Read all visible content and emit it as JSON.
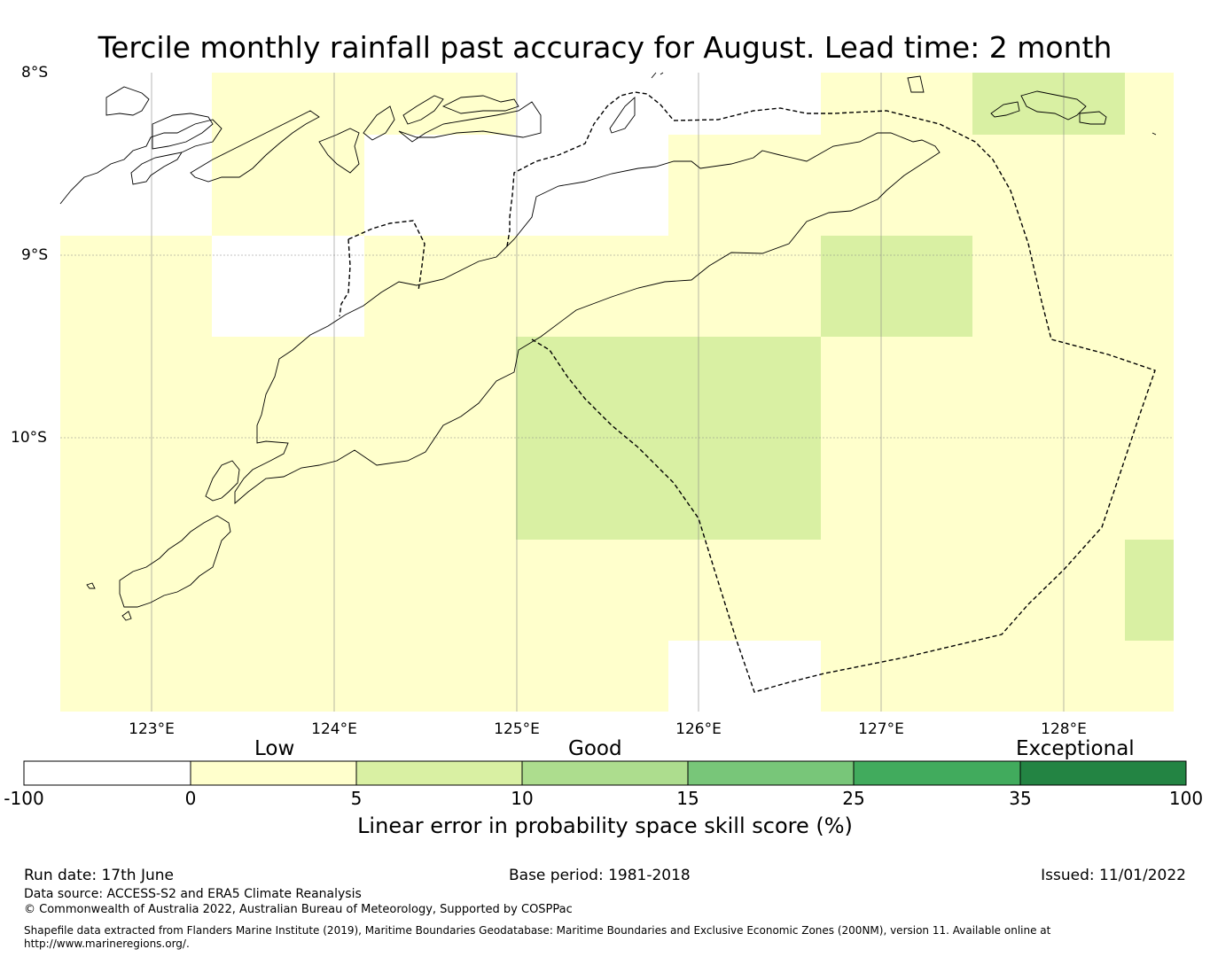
{
  "title": "Tercile monthly rainfall past accuracy for August. Lead time: 2 month",
  "axes": {
    "lat_labels": [
      "8°S",
      "9°S",
      "10°S"
    ],
    "lon_labels": [
      "123°E",
      "124°E",
      "125°E",
      "126°E",
      "127°E",
      "128°E"
    ]
  },
  "map_data": {
    "type": "gridded skill score map",
    "lon_range": [
      122.5,
      128.6
    ],
    "lat_range": [
      -11.5,
      -8.0
    ],
    "cell_size_deg": 0.83,
    "grid_categories": {
      "white": "-100 to 0",
      "light_yellow": "0 to 5",
      "pale_green": "5 to 10",
      "light_green": "10 to 15"
    },
    "features": [
      "coastlines",
      "dashed maritime boundary",
      "lat/lon gridlines"
    ]
  },
  "colorbar": {
    "category_labels": [
      "Low",
      "Good",
      "Exceptional"
    ],
    "ticks": [
      "-100",
      "0",
      "5",
      "10",
      "15",
      "25",
      "35",
      "100"
    ],
    "colors": [
      "#ffffff",
      "#ffffcc",
      "#d9f0a3",
      "#addd8e",
      "#78c679",
      "#41ab5d",
      "#238443"
    ],
    "label": "Linear error in probability space skill score (%)"
  },
  "footer": {
    "run_date": "Run date: 17th June",
    "base_period": "Base period: 1981-2018",
    "issued": "Issued: 11/01/2022",
    "data_source": "Data source: ACCESS-S2 and ERA5 Climate Reanalysis",
    "copyright": "© Commonwealth of Australia 2022, Australian Bureau of Meteorology, Supported by COSPPac",
    "shapefile_line1": "Shapefile data extracted from Flanders Marine Institute (2019), Maritime Boundaries Geodatabase: Maritime Boundaries and Exclusive Economic Zones (200NM), version 11. Available online at",
    "shapefile_line2": "http://www.marineregions.org/."
  }
}
